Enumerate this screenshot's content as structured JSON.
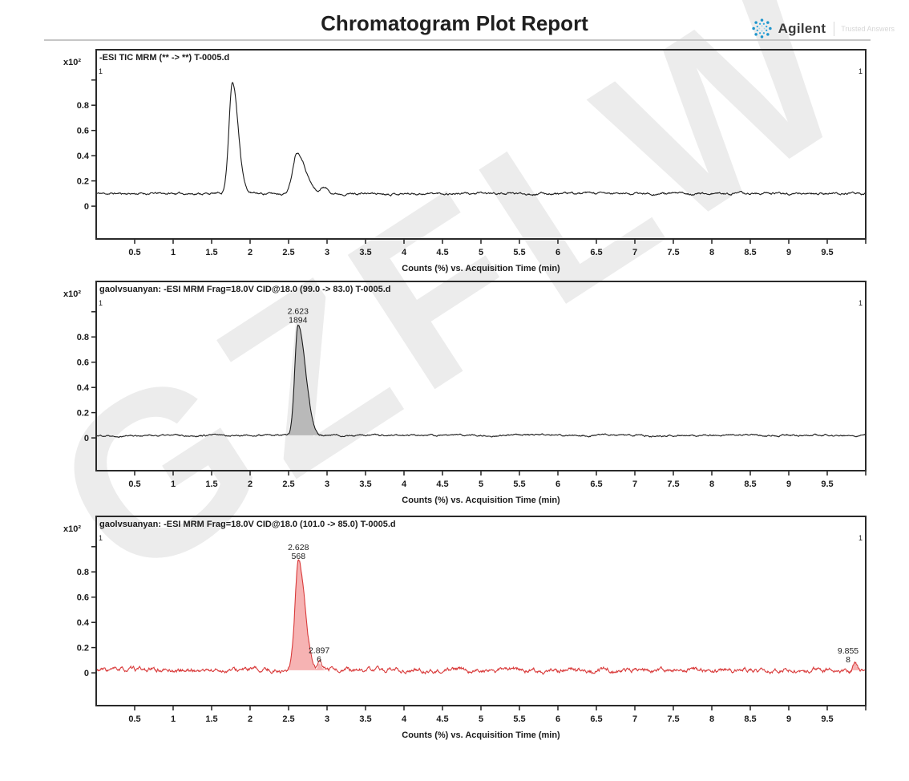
{
  "header": {
    "title": "Chromatogram Plot Report",
    "brand": "Agilent",
    "tagline": "Trusted Answers",
    "brand_accent_color": "#1e95cc"
  },
  "watermark": {
    "text": "GZFLW"
  },
  "chart_data": [
    {
      "type": "line",
      "title": "-ESI TIC MRM (** -> **) T-0005.d",
      "title_color": "#1b1b1b",
      "line_color": "#1b1b1b",
      "fill_color": null,
      "label_color": "#1b1b1b",
      "segment_marker": "1",
      "y_scale_label": "x10²",
      "xlabel": "Counts (%) vs. Acquisition Time (min)",
      "xlim": [
        0,
        10
      ],
      "ylim": [
        -0.26,
        1.24
      ],
      "x_tick_step": 0.5,
      "x_tick_labels": [
        "0.5",
        "1",
        "1.5",
        "2",
        "2.5",
        "3",
        "3.5",
        "4",
        "4.5",
        "5",
        "5.5",
        "6",
        "6.5",
        "7",
        "7.5",
        "8",
        "8.5",
        "9",
        "9.5"
      ],
      "y_ticks": [
        {
          "v": 0.0,
          "label": "0"
        },
        {
          "v": 0.2,
          "label": "0.2"
        },
        {
          "v": 0.4,
          "label": "0.4"
        },
        {
          "v": 0.6,
          "label": "0.6"
        },
        {
          "v": 0.8,
          "label": "0.8"
        },
        {
          "v": 1.0,
          "label": ""
        }
      ],
      "baseline": 0.1,
      "noise_amp": 0.01,
      "seed": 11,
      "peaks": [
        {
          "rt": 1.77,
          "height": 0.88,
          "sl": 0.045,
          "sr": 0.075
        },
        {
          "rt": 2.61,
          "height": 0.33,
          "sl": 0.055,
          "sr": 0.11
        },
        {
          "rt": 2.95,
          "height": 0.05,
          "sl": 0.03,
          "sr": 0.06
        }
      ]
    },
    {
      "type": "line",
      "title": "gaolvsuanyan: -ESI MRM Frag=18.0V CID@18.0 (99.0 -> 83.0) T-0005.d",
      "title_color": "#1b1b1b",
      "line_color": "#1b1b1b",
      "fill_color": "#b9b9b9",
      "label_color": "#2a2a2a",
      "segment_marker": "1",
      "y_scale_label": "x10²",
      "xlabel": "Counts (%) vs. Acquisition Time (min)",
      "xlim": [
        0,
        10
      ],
      "ylim": [
        -0.26,
        1.24
      ],
      "x_tick_step": 0.5,
      "x_tick_labels": [
        "0.5",
        "1",
        "1.5",
        "2",
        "2.5",
        "3",
        "3.5",
        "4",
        "4.5",
        "5",
        "5.5",
        "6",
        "6.5",
        "7",
        "7.5",
        "8",
        "8.5",
        "9",
        "9.5"
      ],
      "y_ticks": [
        {
          "v": 0.0,
          "label": "0"
        },
        {
          "v": 0.2,
          "label": "0.2"
        },
        {
          "v": 0.4,
          "label": "0.4"
        },
        {
          "v": 0.6,
          "label": "0.6"
        },
        {
          "v": 0.8,
          "label": "0.8"
        },
        {
          "v": 1.0,
          "label": ""
        }
      ],
      "baseline": 0.02,
      "noise_amp": 0.008,
      "seed": 22,
      "peaks": [
        {
          "rt": 2.623,
          "height": 0.88,
          "sl": 0.042,
          "sr": 0.095,
          "fill": true,
          "label_rt": "2.623",
          "label_area": "1894"
        }
      ]
    },
    {
      "type": "line",
      "title": "gaolvsuanyan: -ESI MRM Frag=18.0V CID@18.0 (101.0 -> 85.0) T-0005.d",
      "title_color": "#d32f2f",
      "line_color": "#d93a3a",
      "fill_color": "#f6b3b3",
      "label_color": "#d32f2f",
      "segment_marker": "1",
      "y_scale_label": "x10²",
      "xlabel": "Counts (%) vs. Acquisition Time (min)",
      "xlim": [
        0,
        10
      ],
      "ylim": [
        -0.26,
        1.24
      ],
      "x_tick_step": 0.5,
      "x_tick_labels": [
        "0.5",
        "1",
        "1.5",
        "2",
        "2.5",
        "3",
        "3.5",
        "4",
        "4.5",
        "5",
        "5.5",
        "6",
        "6.5",
        "7",
        "7.5",
        "8",
        "8.5",
        "9",
        "9.5"
      ],
      "y_ticks": [
        {
          "v": 0.0,
          "label": "0"
        },
        {
          "v": 0.2,
          "label": "0.2"
        },
        {
          "v": 0.4,
          "label": "0.4"
        },
        {
          "v": 0.6,
          "label": "0.6"
        },
        {
          "v": 0.8,
          "label": "0.8"
        },
        {
          "v": 1.0,
          "label": ""
        }
      ],
      "baseline": 0.02,
      "noise_amp": 0.022,
      "seed": 33,
      "peaks": [
        {
          "rt": 2.628,
          "height": 0.87,
          "sl": 0.045,
          "sr": 0.08,
          "fill": true,
          "label_rt": "2.628",
          "label_area": "568"
        },
        {
          "rt": 2.897,
          "height": 0.055,
          "sl": 0.018,
          "sr": 0.03,
          "fill": true,
          "label_rt": "2.897",
          "label_area": "6"
        },
        {
          "rt": 9.855,
          "height": 0.05,
          "sl": 0.02,
          "sr": 0.03,
          "fill": true,
          "label_rt": "9.855",
          "label_area": "8"
        }
      ]
    }
  ]
}
